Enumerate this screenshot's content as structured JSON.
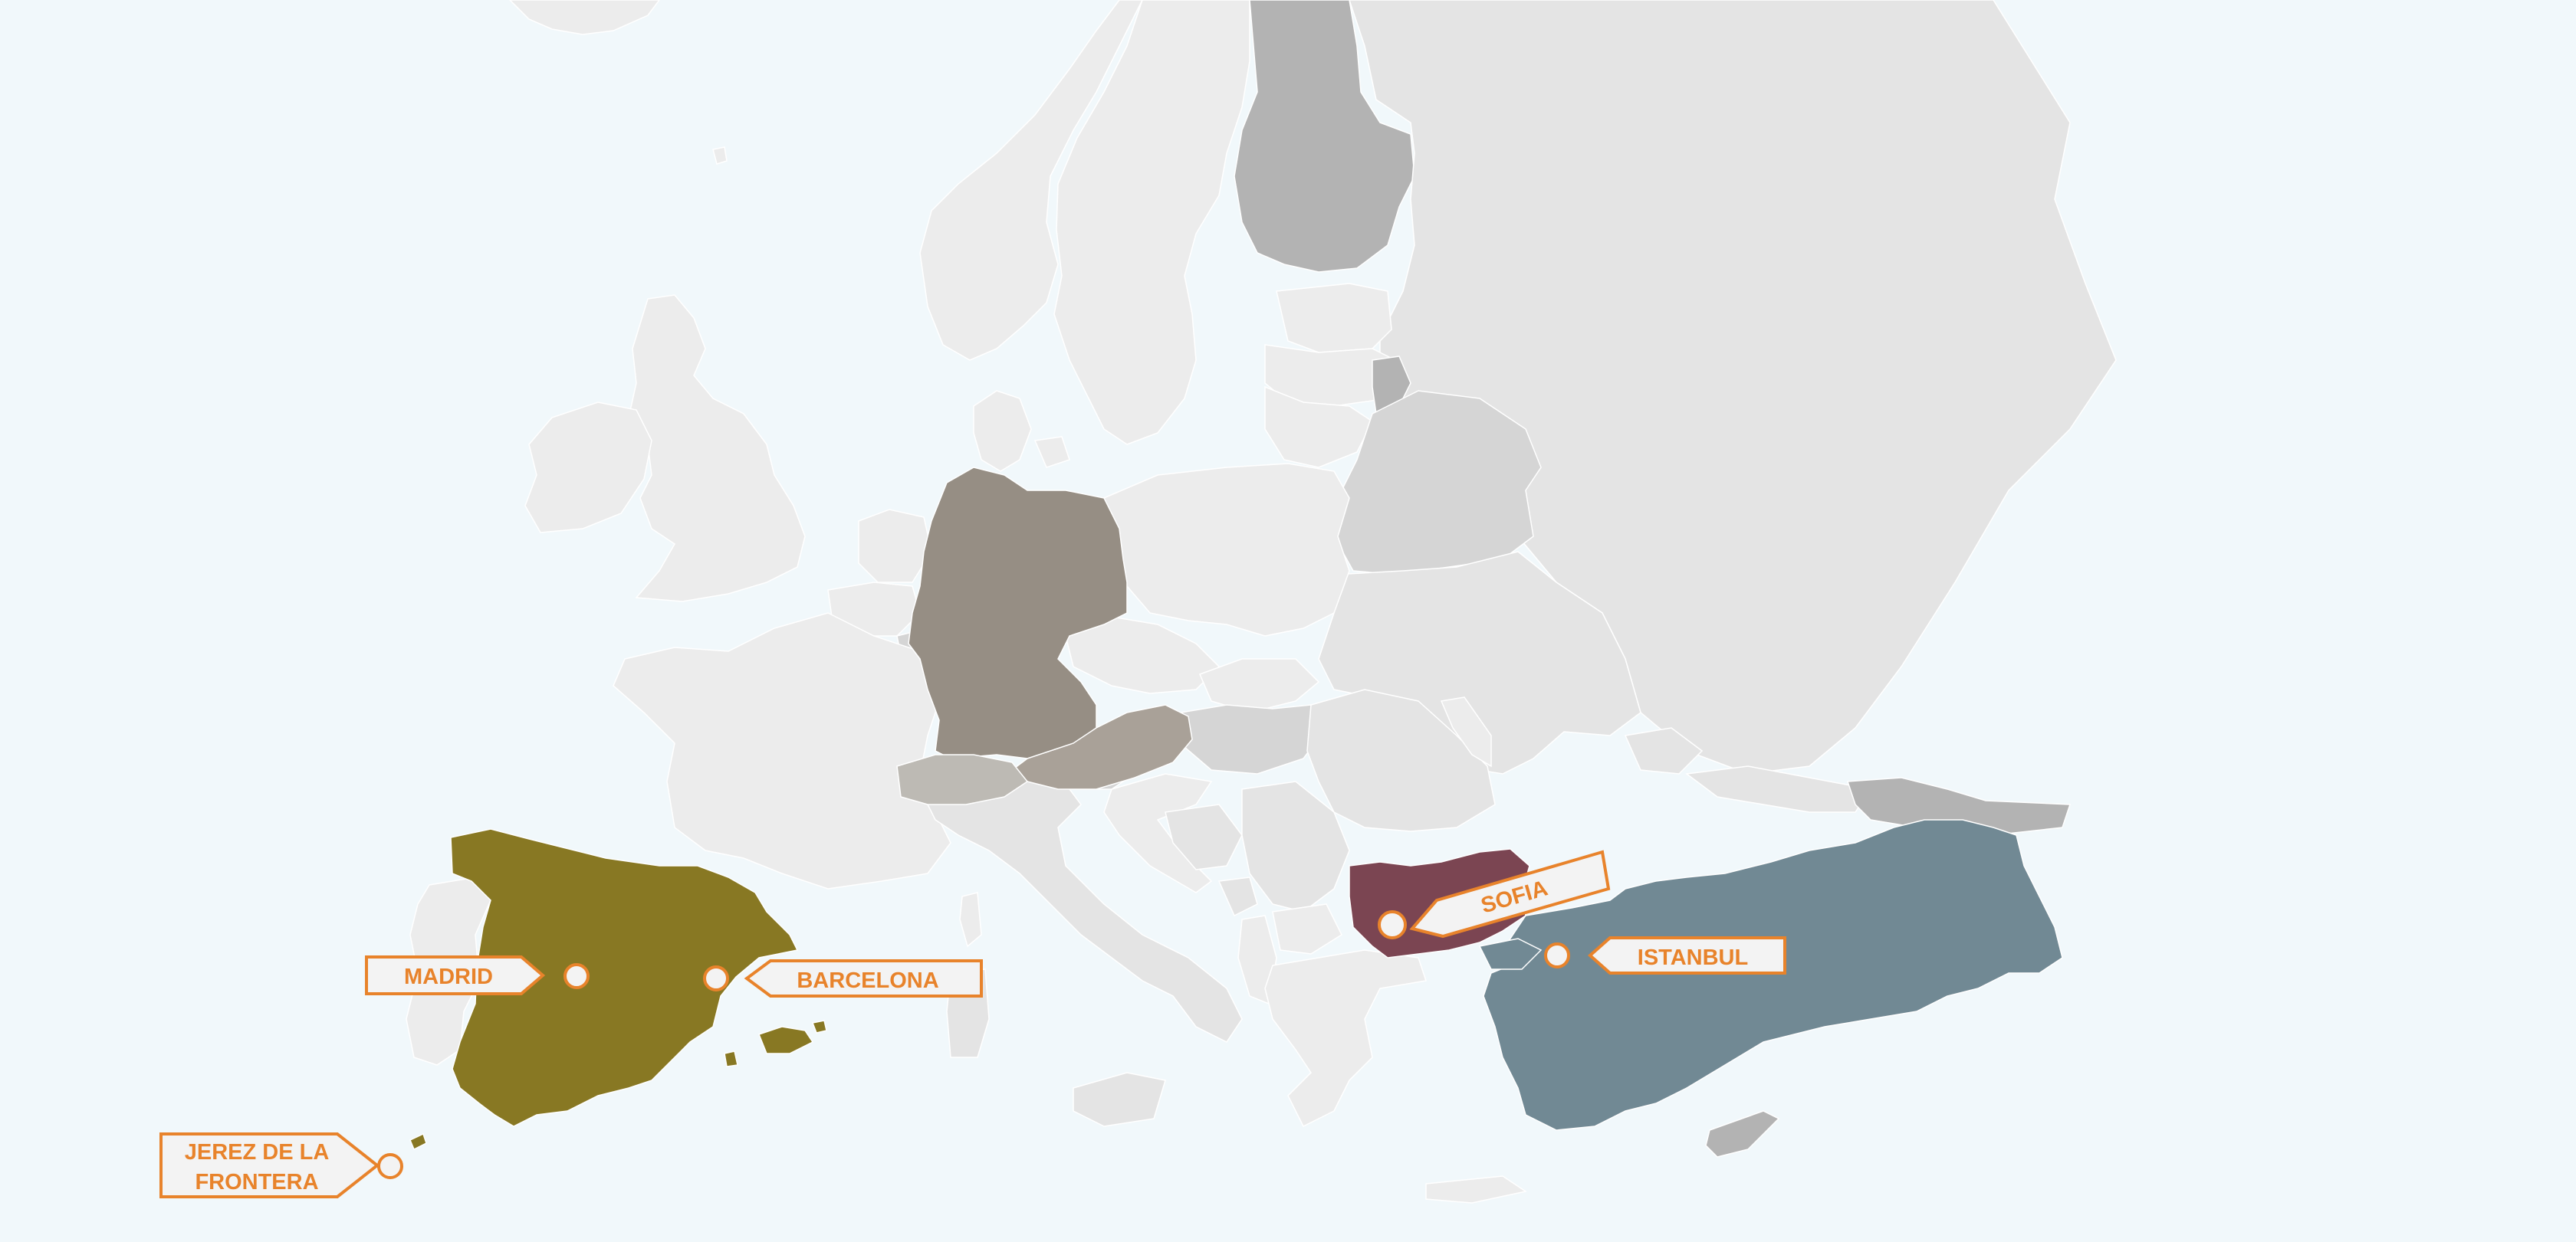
{
  "map": {
    "colors": {
      "sea": "#f1f8fb",
      "land_base": "#e4e4e4",
      "land_light": "#ececec",
      "land_mid": "#d5d5d5",
      "land_dark": "#b3b3b3",
      "spain": "#887823",
      "germany": "#968e84",
      "austria": "#a9a198",
      "switzerland": "#bdbab4",
      "bulgaria": "#7b4552",
      "turkey": "#718994",
      "label_accent": "#e8832b",
      "label_fill": "#f3f3f3"
    },
    "highlighted_countries": [
      {
        "name": "spain",
        "color_key": "spain"
      },
      {
        "name": "germany",
        "color_key": "germany"
      },
      {
        "name": "austria",
        "color_key": "austria"
      },
      {
        "name": "switzerland",
        "color_key": "switzerland"
      },
      {
        "name": "bulgaria",
        "color_key": "bulgaria"
      },
      {
        "name": "turkey",
        "color_key": "turkey"
      }
    ],
    "cities": [
      {
        "id": "madrid",
        "label": "MADRID"
      },
      {
        "id": "barcelona",
        "label": "BARCELONA"
      },
      {
        "id": "jerez",
        "label_line1": "JEREZ DE LA",
        "label_line2": "FRONTERA"
      },
      {
        "id": "sofia",
        "label": "SOFIA"
      },
      {
        "id": "istanbul",
        "label": "ISTANBUL"
      }
    ]
  }
}
